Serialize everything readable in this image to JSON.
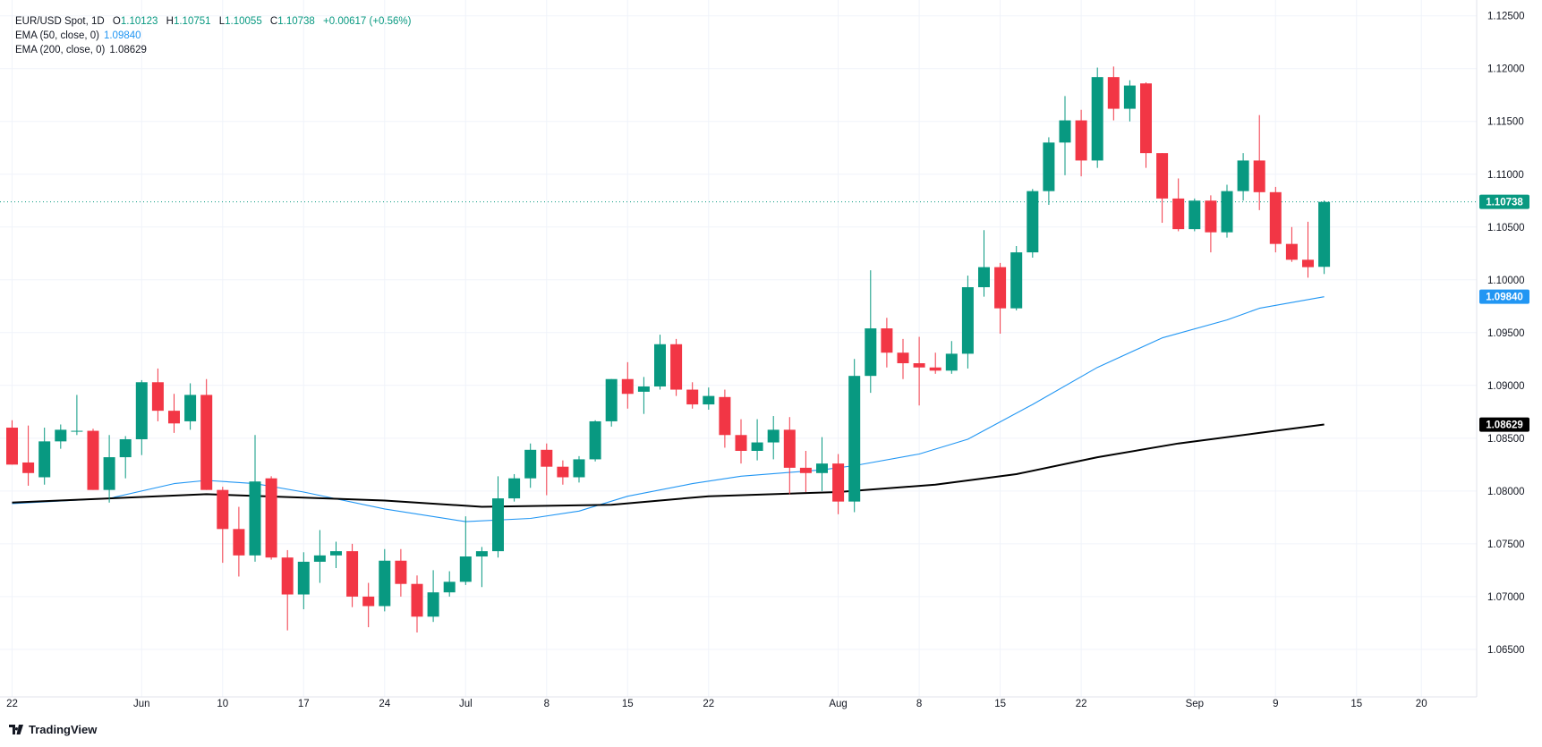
{
  "legend": {
    "symbol": "EUR/USD Spot, 1D",
    "open_label": "O",
    "open": "1.10123",
    "high_label": "H",
    "high": "1.10751",
    "low_label": "L",
    "low": "1.10055",
    "close_label": "C",
    "close": "1.10738",
    "change": "+0.00617 (+0.56%)",
    "ema50_label": "EMA (50, close, 0)",
    "ema50_value": "1.09840",
    "ema200_label": "EMA (200, close, 0)",
    "ema200_value": "1.08629"
  },
  "brand": {
    "name": "TradingView",
    "icon": "tradingview-logo-icon"
  },
  "colors": {
    "up": "#089981",
    "down": "#f23645",
    "ema50": "#2196f3",
    "ema200": "#000000",
    "grid": "#f0f3fa",
    "axis_text": "#131722"
  },
  "chart_data": {
    "type": "candlestick",
    "x_axis": {
      "tick_labels": [
        "22",
        "Jun",
        "10",
        "17",
        "24",
        "Jul",
        "8",
        "15",
        "22",
        "Aug",
        "8",
        "15",
        "22",
        "Sep",
        "9",
        "15",
        "20"
      ]
    },
    "y_axis": {
      "range": [
        1.0605,
        1.1265
      ],
      "tick_labels": [
        "1.12500",
        "1.12000",
        "1.11500",
        "1.11000",
        "1.10500",
        "1.10000",
        "1.09500",
        "1.09000",
        "1.08500",
        "1.08000",
        "1.07500",
        "1.07000",
        "1.06500"
      ],
      "ticks": [
        1.125,
        1.12,
        1.115,
        1.11,
        1.105,
        1.1,
        1.095,
        1.09,
        1.085,
        1.08,
        1.075,
        1.07,
        1.065
      ],
      "price_tags": [
        {
          "label": "1.10738",
          "value": 1.10738,
          "color": "#089981"
        },
        {
          "label": "1.09840",
          "value": 1.0984,
          "color": "#2196f3"
        },
        {
          "label": "1.08629",
          "value": 1.08629,
          "color": "#000000"
        }
      ]
    },
    "last_close_line": 1.10738,
    "candles": [
      {
        "date": "May 22",
        "o": 1.086,
        "h": 1.0867,
        "l": 1.0825,
        "c": 1.0825
      },
      {
        "date": "May 23",
        "o": 1.0827,
        "h": 1.0862,
        "l": 1.0805,
        "c": 1.0817
      },
      {
        "date": "May 24",
        "o": 1.0813,
        "h": 1.086,
        "l": 1.0806,
        "c": 1.0847
      },
      {
        "date": "May 27",
        "o": 1.0847,
        "h": 1.0863,
        "l": 1.084,
        "c": 1.0858
      },
      {
        "date": "May 28",
        "o": 1.0857,
        "h": 1.0891,
        "l": 1.0853,
        "c": 1.0857
      },
      {
        "date": "May 29",
        "o": 1.0857,
        "h": 1.0859,
        "l": 1.0801,
        "c": 1.0801
      },
      {
        "date": "May 30",
        "o": 1.0801,
        "h": 1.0853,
        "l": 1.0789,
        "c": 1.0832
      },
      {
        "date": "May 31",
        "o": 1.0832,
        "h": 1.0852,
        "l": 1.0812,
        "c": 1.0849
      },
      {
        "date": "Jun 3",
        "o": 1.0849,
        "h": 1.0905,
        "l": 1.0834,
        "c": 1.0903
      },
      {
        "date": "Jun 4",
        "o": 1.0903,
        "h": 1.0916,
        "l": 1.0866,
        "c": 1.0876
      },
      {
        "date": "Jun 5",
        "o": 1.0876,
        "h": 1.0892,
        "l": 1.0855,
        "c": 1.0864
      },
      {
        "date": "Jun 6",
        "o": 1.0866,
        "h": 1.0902,
        "l": 1.0858,
        "c": 1.0891
      },
      {
        "date": "Jun 7",
        "o": 1.0891,
        "h": 1.0906,
        "l": 1.0801,
        "c": 1.0801
      },
      {
        "date": "Jun 10",
        "o": 1.0801,
        "h": 1.0804,
        "l": 1.0732,
        "c": 1.0764
      },
      {
        "date": "Jun 11",
        "o": 1.0764,
        "h": 1.0785,
        "l": 1.0719,
        "c": 1.0739
      },
      {
        "date": "Jun 12",
        "o": 1.0739,
        "h": 1.0853,
        "l": 1.0733,
        "c": 1.0809
      },
      {
        "date": "Jun 13",
        "o": 1.0812,
        "h": 1.0814,
        "l": 1.0735,
        "c": 1.0737
      },
      {
        "date": "Jun 14",
        "o": 1.0737,
        "h": 1.0744,
        "l": 1.0668,
        "c": 1.0702
      },
      {
        "date": "Jun 17",
        "o": 1.0702,
        "h": 1.0742,
        "l": 1.0688,
        "c": 1.0733
      },
      {
        "date": "Jun 18",
        "o": 1.0733,
        "h": 1.0763,
        "l": 1.0713,
        "c": 1.0739
      },
      {
        "date": "Jun 19",
        "o": 1.0739,
        "h": 1.0752,
        "l": 1.0727,
        "c": 1.0743
      },
      {
        "date": "Jun 20",
        "o": 1.0743,
        "h": 1.075,
        "l": 1.069,
        "c": 1.07
      },
      {
        "date": "Jun 21",
        "o": 1.07,
        "h": 1.0713,
        "l": 1.0671,
        "c": 1.0691
      },
      {
        "date": "Jun 24",
        "o": 1.0691,
        "h": 1.0745,
        "l": 1.0686,
        "c": 1.0734
      },
      {
        "date": "Jun 25",
        "o": 1.0734,
        "h": 1.0745,
        "l": 1.07,
        "c": 1.0712
      },
      {
        "date": "Jun 26",
        "o": 1.0712,
        "h": 1.072,
        "l": 1.0666,
        "c": 1.0681
      },
      {
        "date": "Jun 27",
        "o": 1.0681,
        "h": 1.0725,
        "l": 1.0676,
        "c": 1.0704
      },
      {
        "date": "Jun 28",
        "o": 1.0704,
        "h": 1.0724,
        "l": 1.07,
        "c": 1.0714
      },
      {
        "date": "Jul 1",
        "o": 1.0714,
        "h": 1.0776,
        "l": 1.0711,
        "c": 1.0738
      },
      {
        "date": "Jul 2",
        "o": 1.0738,
        "h": 1.0747,
        "l": 1.0709,
        "c": 1.0743
      },
      {
        "date": "Jul 3",
        "o": 1.0743,
        "h": 1.0814,
        "l": 1.0737,
        "c": 1.0793
      },
      {
        "date": "Jul 4",
        "o": 1.0793,
        "h": 1.0816,
        "l": 1.079,
        "c": 1.0812
      },
      {
        "date": "Jul 5",
        "o": 1.0812,
        "h": 1.0845,
        "l": 1.0803,
        "c": 1.0839
      },
      {
        "date": "Jul 8",
        "o": 1.0839,
        "h": 1.0845,
        "l": 1.0796,
        "c": 1.0823
      },
      {
        "date": "Jul 9",
        "o": 1.0823,
        "h": 1.0829,
        "l": 1.0806,
        "c": 1.0813
      },
      {
        "date": "Jul 10",
        "o": 1.0813,
        "h": 1.0833,
        "l": 1.0808,
        "c": 1.083
      },
      {
        "date": "Jul 11",
        "o": 1.083,
        "h": 1.0867,
        "l": 1.0828,
        "c": 1.0866
      },
      {
        "date": "Jul 12",
        "o": 1.0866,
        "h": 1.0906,
        "l": 1.0861,
        "c": 1.0906
      },
      {
        "date": "Jul 15",
        "o": 1.0906,
        "h": 1.0922,
        "l": 1.0878,
        "c": 1.0892
      },
      {
        "date": "Jul 16",
        "o": 1.0894,
        "h": 1.0908,
        "l": 1.0873,
        "c": 1.0899
      },
      {
        "date": "Jul 17",
        "o": 1.0899,
        "h": 1.0948,
        "l": 1.0896,
        "c": 1.0939
      },
      {
        "date": "Jul 18",
        "o": 1.0939,
        "h": 1.0944,
        "l": 1.089,
        "c": 1.0896
      },
      {
        "date": "Jul 19",
        "o": 1.0896,
        "h": 1.0903,
        "l": 1.0878,
        "c": 1.0882
      },
      {
        "date": "Jul 22",
        "o": 1.0882,
        "h": 1.0898,
        "l": 1.0877,
        "c": 1.089
      },
      {
        "date": "Jul 23",
        "o": 1.0889,
        "h": 1.0896,
        "l": 1.0841,
        "c": 1.0853
      },
      {
        "date": "Jul 24",
        "o": 1.0853,
        "h": 1.0868,
        "l": 1.0826,
        "c": 1.0838
      },
      {
        "date": "Jul 25",
        "o": 1.0838,
        "h": 1.0868,
        "l": 1.0829,
        "c": 1.0846
      },
      {
        "date": "Jul 26",
        "o": 1.0846,
        "h": 1.0871,
        "l": 1.083,
        "c": 1.0858
      },
      {
        "date": "Jul 29",
        "o": 1.0858,
        "h": 1.087,
        "l": 1.0797,
        "c": 1.0822
      },
      {
        "date": "Jul 30",
        "o": 1.0822,
        "h": 1.0838,
        "l": 1.0799,
        "c": 1.0817
      },
      {
        "date": "Jul 31",
        "o": 1.0817,
        "h": 1.0851,
        "l": 1.08,
        "c": 1.0826
      },
      {
        "date": "Aug 1",
        "o": 1.0826,
        "h": 1.0835,
        "l": 1.0778,
        "c": 1.079
      },
      {
        "date": "Aug 2",
        "o": 1.079,
        "h": 1.0925,
        "l": 1.078,
        "c": 1.0909
      },
      {
        "date": "Aug 5",
        "o": 1.0909,
        "h": 1.1009,
        "l": 1.0893,
        "c": 1.0954
      },
      {
        "date": "Aug 6",
        "o": 1.0954,
        "h": 1.0964,
        "l": 1.0917,
        "c": 1.0931
      },
      {
        "date": "Aug 7",
        "o": 1.0931,
        "h": 1.0944,
        "l": 1.0906,
        "c": 1.0921
      },
      {
        "date": "Aug 8",
        "o": 1.0921,
        "h": 1.0946,
        "l": 1.0881,
        "c": 1.0917
      },
      {
        "date": "Aug 9",
        "o": 1.0917,
        "h": 1.0931,
        "l": 1.0911,
        "c": 1.0914
      },
      {
        "date": "Aug 12",
        "o": 1.0914,
        "h": 1.0942,
        "l": 1.0911,
        "c": 1.093
      },
      {
        "date": "Aug 13",
        "o": 1.093,
        "h": 1.1004,
        "l": 1.0916,
        "c": 1.0993
      },
      {
        "date": "Aug 14",
        "o": 1.0993,
        "h": 1.1047,
        "l": 1.0984,
        "c": 1.1012
      },
      {
        "date": "Aug 15",
        "o": 1.1012,
        "h": 1.1016,
        "l": 1.0949,
        "c": 1.0973
      },
      {
        "date": "Aug 16",
        "o": 1.0973,
        "h": 1.1032,
        "l": 1.0971,
        "c": 1.1026
      },
      {
        "date": "Aug 19",
        "o": 1.1026,
        "h": 1.1086,
        "l": 1.1021,
        "c": 1.1084
      },
      {
        "date": "Aug 20",
        "o": 1.1084,
        "h": 1.1135,
        "l": 1.1071,
        "c": 1.113
      },
      {
        "date": "Aug 21",
        "o": 1.113,
        "h": 1.1174,
        "l": 1.1099,
        "c": 1.1151
      },
      {
        "date": "Aug 22",
        "o": 1.1151,
        "h": 1.1161,
        "l": 1.1098,
        "c": 1.1113
      },
      {
        "date": "Aug 23",
        "o": 1.1113,
        "h": 1.1201,
        "l": 1.1106,
        "c": 1.1192
      },
      {
        "date": "Aug 26",
        "o": 1.1192,
        "h": 1.1202,
        "l": 1.1151,
        "c": 1.1162
      },
      {
        "date": "Aug 27",
        "o": 1.1162,
        "h": 1.1189,
        "l": 1.115,
        "c": 1.1184
      },
      {
        "date": "Aug 28",
        "o": 1.1186,
        "h": 1.1187,
        "l": 1.1106,
        "c": 1.112
      },
      {
        "date": "Aug 29",
        "o": 1.112,
        "h": 1.112,
        "l": 1.1054,
        "c": 1.1077
      },
      {
        "date": "Aug 30",
        "o": 1.1077,
        "h": 1.1096,
        "l": 1.1046,
        "c": 1.1048
      },
      {
        "date": "Sep 2",
        "o": 1.1048,
        "h": 1.1077,
        "l": 1.1046,
        "c": 1.1075
      },
      {
        "date": "Sep 3",
        "o": 1.1075,
        "h": 1.108,
        "l": 1.1026,
        "c": 1.1045
      },
      {
        "date": "Sep 4",
        "o": 1.1045,
        "h": 1.109,
        "l": 1.104,
        "c": 1.1084
      },
      {
        "date": "Sep 5",
        "o": 1.1084,
        "h": 1.112,
        "l": 1.1075,
        "c": 1.1113
      },
      {
        "date": "Sep 6",
        "o": 1.1113,
        "h": 1.1156,
        "l": 1.1066,
        "c": 1.1083
      },
      {
        "date": "Sep 9",
        "o": 1.1083,
        "h": 1.1088,
        "l": 1.1026,
        "c": 1.1034
      },
      {
        "date": "Sep 10",
        "o": 1.1034,
        "h": 1.105,
        "l": 1.1017,
        "c": 1.1019
      },
      {
        "date": "Sep 11",
        "o": 1.1019,
        "h": 1.1055,
        "l": 1.1002,
        "c": 1.1012
      },
      {
        "date": "Sep 12",
        "o": 1.10123,
        "h": 1.10751,
        "l": 1.10055,
        "c": 1.10738
      }
    ],
    "series": [
      {
        "name": "EMA (50, close, 0)",
        "color": "#2196f3",
        "points": [
          {
            "date": "May 22",
            "v": 1.0788
          },
          {
            "date": "May 30",
            "v": 1.0793
          },
          {
            "date": "Jun 5",
            "v": 1.0807
          },
          {
            "date": "Jun 7",
            "v": 1.081
          },
          {
            "date": "Jun 12",
            "v": 1.0807
          },
          {
            "date": "Jun 17",
            "v": 1.0799
          },
          {
            "date": "Jun 24",
            "v": 1.0783
          },
          {
            "date": "Jul 1",
            "v": 1.0771
          },
          {
            "date": "Jul 5",
            "v": 1.0774
          },
          {
            "date": "Jul 10",
            "v": 1.0781
          },
          {
            "date": "Jul 15",
            "v": 1.0795
          },
          {
            "date": "Jul 19",
            "v": 1.0807
          },
          {
            "date": "Jul 24",
            "v": 1.0814
          },
          {
            "date": "Jul 31",
            "v": 1.082
          },
          {
            "date": "Aug 2",
            "v": 1.0824
          },
          {
            "date": "Aug 8",
            "v": 1.0835
          },
          {
            "date": "Aug 13",
            "v": 1.0849
          },
          {
            "date": "Aug 19",
            "v": 1.0882
          },
          {
            "date": "Aug 23",
            "v": 1.0917
          },
          {
            "date": "Aug 29",
            "v": 1.0945
          },
          {
            "date": "Sep 4",
            "v": 1.0962
          },
          {
            "date": "Sep 6",
            "v": 1.0973
          },
          {
            "date": "Sep 12",
            "v": 1.0984
          }
        ]
      },
      {
        "name": "EMA (200, close, 0)",
        "color": "#000000",
        "points": [
          {
            "date": "May 22",
            "v": 1.0789
          },
          {
            "date": "Jun 7",
            "v": 1.0797
          },
          {
            "date": "Jun 24",
            "v": 1.0791
          },
          {
            "date": "Jul 2",
            "v": 1.0785
          },
          {
            "date": "Jul 12",
            "v": 1.0787
          },
          {
            "date": "Jul 22",
            "v": 1.0795
          },
          {
            "date": "Aug 1",
            "v": 1.0799
          },
          {
            "date": "Aug 9",
            "v": 1.0806
          },
          {
            "date": "Aug 16",
            "v": 1.0816
          },
          {
            "date": "Aug 23",
            "v": 1.0832
          },
          {
            "date": "Aug 30",
            "v": 1.0845
          },
          {
            "date": "Sep 6",
            "v": 1.0855
          },
          {
            "date": "Sep 12",
            "v": 1.0863
          }
        ]
      }
    ]
  }
}
